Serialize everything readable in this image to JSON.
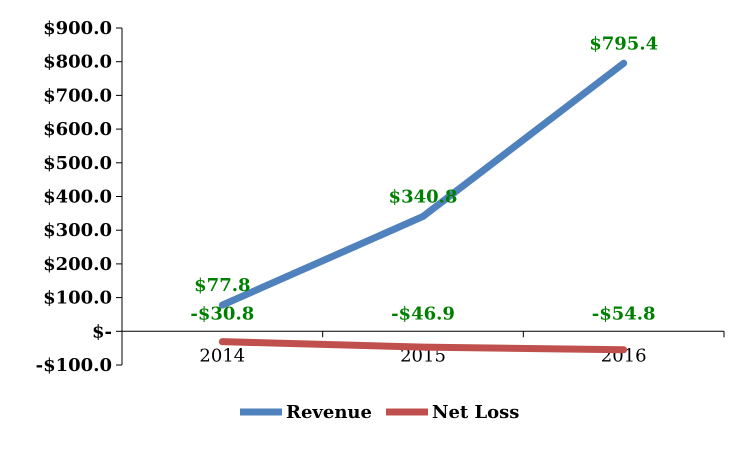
{
  "chart_data": {
    "type": "line",
    "categories": [
      "2014",
      "2015",
      "2016"
    ],
    "series": [
      {
        "name": "Revenue",
        "values": [
          77.8,
          340.8,
          795.4
        ],
        "labels": [
          "$77.8",
          "$340.8",
          "$795.4"
        ],
        "color": "#4f81bd"
      },
      {
        "name": "Net Loss",
        "values": [
          -30.8,
          -46.9,
          -54.8
        ],
        "labels": [
          "-$30.8",
          "-$46.9",
          "-$54.8"
        ],
        "color": "#c0504d"
      }
    ],
    "yticks": [
      -100,
      0,
      100,
      200,
      300,
      400,
      500,
      600,
      700,
      800,
      900
    ],
    "ytick_labels": [
      "-$100.0",
      "$-",
      "$100.0",
      "$200.0",
      "$300.0",
      "$400.0",
      "$500.0",
      "$600.0",
      "$700.0",
      "$800.0",
      "$900.0"
    ],
    "ylim": [
      -100,
      900
    ],
    "data_label_color": "#008000",
    "legend_position": "bottom",
    "grid": false
  }
}
